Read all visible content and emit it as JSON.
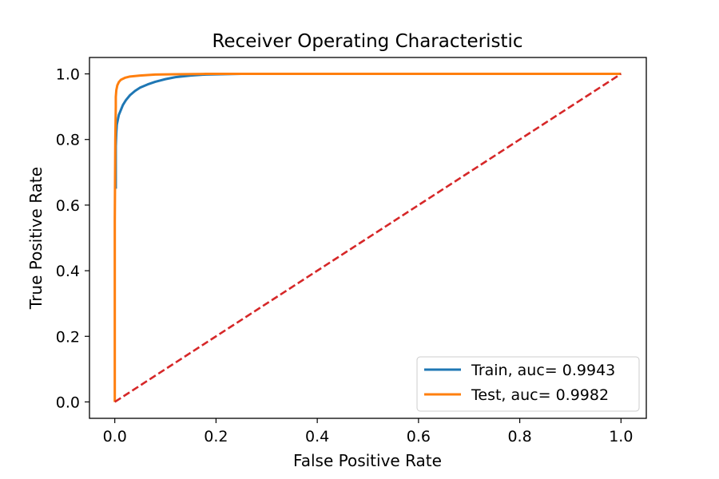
{
  "chart_data": {
    "type": "line",
    "title": "Receiver Operating Characteristic",
    "xlabel": "False Positive Rate",
    "ylabel": "True Positive Rate",
    "xlim": [
      -0.05,
      1.05
    ],
    "ylim": [
      -0.05,
      1.05
    ],
    "x_ticks": [
      0.0,
      0.2,
      0.4,
      0.6,
      0.8,
      1.0
    ],
    "x_tick_labels": [
      "0.0",
      "0.2",
      "0.4",
      "0.6",
      "0.8",
      "1.0"
    ],
    "y_ticks": [
      0.0,
      0.2,
      0.4,
      0.6,
      0.8,
      1.0
    ],
    "y_tick_labels": [
      "0.0",
      "0.2",
      "0.4",
      "0.6",
      "0.8",
      "1.0"
    ],
    "grid": false,
    "legend_position": "lower-right",
    "series": [
      {
        "name": "Train, auc= 0.9943",
        "color": "#1f77b4",
        "style": "solid",
        "x": [
          0.002,
          0.002,
          0.003,
          0.004,
          0.006,
          0.008,
          0.012,
          0.016,
          0.022,
          0.03,
          0.04,
          0.05,
          0.065,
          0.08,
          0.1,
          0.12,
          0.15,
          0.18,
          0.25,
          1.0
        ],
        "y": [
          0.65,
          0.78,
          0.82,
          0.845,
          0.86,
          0.875,
          0.89,
          0.905,
          0.92,
          0.935,
          0.948,
          0.958,
          0.968,
          0.976,
          0.984,
          0.99,
          0.995,
          0.998,
          1.0,
          1.0
        ]
      },
      {
        "name": "Test, auc= 0.9982",
        "color": "#ff7f0e",
        "style": "solid",
        "x": [
          0.0,
          0.0,
          0.001,
          0.002,
          0.002,
          0.003,
          0.005,
          0.008,
          0.012,
          0.02,
          0.03,
          0.05,
          0.08,
          0.12,
          0.18,
          1.0
        ],
        "y": [
          0.0,
          0.55,
          0.8,
          0.9,
          0.93,
          0.95,
          0.965,
          0.975,
          0.982,
          0.988,
          0.992,
          0.995,
          0.998,
          0.999,
          1.0,
          1.0
        ]
      },
      {
        "name": "",
        "color": "#d62728",
        "style": "dashed",
        "x": [
          0.0,
          1.0
        ],
        "y": [
          0.0,
          1.0
        ]
      }
    ]
  }
}
